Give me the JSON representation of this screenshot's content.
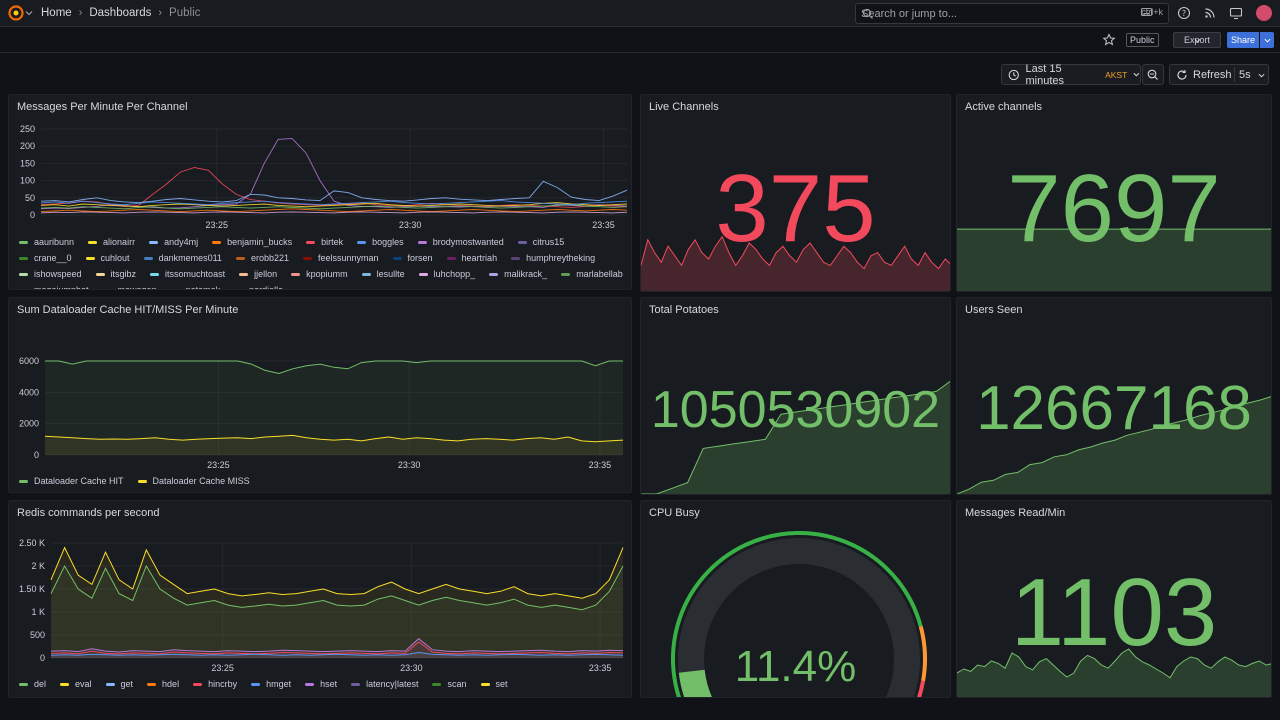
{
  "nav": {
    "breadcrumb_home": "Home",
    "breadcrumb_dashboards": "Dashboards",
    "breadcrumb_current": "Public",
    "search_placeholder": "Search or jump to...",
    "search_shortcut": "ctrl+k"
  },
  "toolbar": {
    "public_badge": "Public",
    "export_label": "Export",
    "share_label": "Share",
    "time_range": "Last 15 minutes",
    "timezone": "AKST",
    "refresh_label": "Refresh",
    "refresh_interval": "5s"
  },
  "panels": {
    "messages": {
      "title": "Messages Per Minute Per Channel",
      "yticks": [
        "250",
        "200",
        "150",
        "100",
        "50",
        "0"
      ],
      "xticks": [
        "23:25",
        "23:30",
        "23:35"
      ],
      "legend": [
        {
          "name": "aauribunn",
          "color": "#73bf69"
        },
        {
          "name": "alionairr",
          "color": "#fade2a"
        },
        {
          "name": "andy4mj",
          "color": "#8ab8ff"
        },
        {
          "name": "benjamin_bucks",
          "color": "#ff780a"
        },
        {
          "name": "birtek",
          "color": "#f2495c"
        },
        {
          "name": "boggles",
          "color": "#5794f2"
        },
        {
          "name": "brodymostwanted",
          "color": "#b877d9"
        },
        {
          "name": "citrus15",
          "color": "#705da0"
        },
        {
          "name": "crane__0",
          "color": "#37872d"
        },
        {
          "name": "cuhlout",
          "color": "#fade2a"
        },
        {
          "name": "dankmemes011",
          "color": "#447ebc"
        },
        {
          "name": "erobb221",
          "color": "#c15c17"
        },
        {
          "name": "feelssunnyman",
          "color": "#890f02"
        },
        {
          "name": "forsen",
          "color": "#0a437c"
        },
        {
          "name": "heartriah",
          "color": "#6d1f62"
        },
        {
          "name": "humphreytheking",
          "color": "#584477"
        },
        {
          "name": "ishowspeed",
          "color": "#b7dbab"
        },
        {
          "name": "itsgibz",
          "color": "#f4d598"
        },
        {
          "name": "itssomuchtoast",
          "color": "#70dbed"
        },
        {
          "name": "jjellon",
          "color": "#f9ba8f"
        },
        {
          "name": "kpopiumm",
          "color": "#f29191"
        },
        {
          "name": "lesullte",
          "color": "#82b5d8"
        },
        {
          "name": "luhchopp_",
          "color": "#e5a8e2"
        },
        {
          "name": "malikrack_",
          "color": "#aea2e0"
        },
        {
          "name": "marlabellab",
          "color": "#629e51"
        },
        {
          "name": "megajumpbot",
          "color": "#e5ac0e"
        },
        {
          "name": "mowogan",
          "color": "#64b0c8"
        },
        {
          "name": "natemek",
          "color": "#e0752d"
        },
        {
          "name": "nerdiella",
          "color": "#bf1b00"
        }
      ],
      "series": [
        {
          "color": "#b877d9",
          "values": [
            18,
            20,
            19,
            22,
            25,
            30,
            28,
            24,
            22,
            20,
            21,
            24,
            28,
            30,
            32,
            60,
            150,
            220,
            222,
            180,
            100,
            40,
            28,
            25,
            24,
            22,
            24,
            26,
            25,
            24,
            23,
            25,
            24,
            26,
            25,
            24,
            22,
            30,
            28,
            26,
            30,
            28,
            26
          ]
        },
        {
          "color": "#f2495c",
          "values": [
            30,
            32,
            35,
            40,
            38,
            30,
            25,
            28,
            60,
            90,
            125,
            138,
            130,
            90,
            60,
            45,
            40,
            35,
            32,
            30,
            28,
            30,
            32,
            35,
            30,
            28,
            26,
            30,
            34,
            30,
            28,
            26,
            25,
            28,
            30,
            28,
            26,
            24,
            22,
            25,
            28,
            26,
            24
          ]
        },
        {
          "color": "#8ab8ff",
          "values": [
            40,
            42,
            38,
            45,
            50,
            42,
            38,
            36,
            40,
            45,
            48,
            44,
            40,
            38,
            42,
            60,
            58,
            50,
            48,
            44,
            42,
            70,
            65,
            50,
            45,
            42,
            40,
            44,
            48,
            50,
            46,
            44,
            42,
            45,
            48,
            50,
            98,
            80,
            52,
            45,
            42,
            55,
            72
          ]
        },
        {
          "color": "#fade2a",
          "values": [
            28,
            30,
            26,
            32,
            30,
            28,
            26,
            24,
            28,
            30,
            32,
            30,
            28,
            26,
            28,
            30,
            32,
            28,
            26,
            24,
            26,
            28,
            30,
            32,
            34,
            30,
            28,
            26,
            28,
            30,
            32,
            30,
            28,
            26,
            28,
            30,
            34,
            36,
            32,
            30,
            28,
            30,
            32
          ]
        },
        {
          "color": "#73bf69",
          "values": [
            20,
            22,
            20,
            24,
            22,
            20,
            18,
            22,
            24,
            20,
            18,
            20,
            22,
            24,
            22,
            20,
            22,
            24,
            22,
            20,
            18,
            20,
            22,
            24,
            26,
            24,
            22,
            20,
            22,
            24,
            26,
            24,
            22,
            20,
            22,
            24,
            26,
            28,
            30,
            26,
            24,
            22,
            24
          ]
        },
        {
          "color": "#ff780a",
          "values": [
            10,
            12,
            14,
            12,
            10,
            12,
            14,
            16,
            14,
            12,
            10,
            12,
            14,
            12,
            10,
            12,
            14,
            16,
            18,
            16,
            14,
            12,
            10,
            12,
            14,
            16,
            14,
            12,
            10,
            12,
            14,
            16,
            14,
            12,
            10,
            12,
            14,
            16,
            14,
            12,
            14,
            16,
            14
          ]
        },
        {
          "color": "#5794f2",
          "values": [
            35,
            38,
            34,
            40,
            36,
            32,
            30,
            34,
            38,
            36,
            34,
            32,
            30,
            34,
            36,
            38,
            40,
            36,
            34,
            32,
            30,
            32,
            34,
            36,
            38,
            40,
            36,
            34,
            32,
            34,
            36,
            38,
            40,
            42,
            38,
            36,
            34,
            32,
            30,
            34,
            36,
            38,
            40
          ]
        },
        {
          "color": "#e5a8e2",
          "values": [
            6,
            8,
            7,
            9,
            8,
            7,
            6,
            8,
            9,
            8,
            7,
            6,
            8,
            9,
            8,
            7,
            6,
            8,
            9,
            8,
            7,
            6,
            8,
            9,
            8,
            7,
            6,
            8,
            9,
            8,
            7,
            6,
            8,
            9,
            8,
            7,
            6,
            8,
            9,
            8,
            7,
            6,
            8
          ]
        }
      ]
    },
    "cache": {
      "title": "Sum Dataloader Cache HIT/MISS Per Minute",
      "yticks": [
        "6000",
        "4000",
        "2000",
        "0"
      ],
      "xticks": [
        "23:25",
        "23:30",
        "23:35"
      ],
      "legend": [
        {
          "name": "Dataloader Cache HIT",
          "color": "#73bf69"
        },
        {
          "name": "Dataloader Cache MISS",
          "color": "#fade2a"
        }
      ],
      "series": [
        {
          "color": "#73bf69",
          "values": [
            6300,
            6100,
            5800,
            6000,
            6200,
            6800,
            6900,
            6700,
            6200,
            6100,
            6400,
            7000,
            6800,
            6300,
            6200,
            5800,
            5400,
            5200,
            5500,
            5700,
            5800,
            5600,
            5500,
            5900,
            6200,
            6600,
            6100,
            5900,
            6700,
            6600,
            6400,
            6500,
            6600,
            6300,
            6800,
            7300,
            7100,
            6900,
            6500,
            6000,
            5700,
            6100,
            6500
          ]
        },
        {
          "color": "#fade2a",
          "values": [
            1200,
            1150,
            1100,
            1050,
            1000,
            1020,
            1000,
            1050,
            1100,
            1000,
            950,
            1000,
            1050,
            1080,
            1100,
            1050,
            1150,
            1200,
            1250,
            1100,
            1000,
            950,
            1000,
            900,
            1050,
            1150,
            1000,
            1100,
            1050,
            950,
            900,
            1000,
            1050,
            1000,
            950,
            1050,
            1100,
            1000,
            1150,
            900,
            850,
            900,
            950
          ]
        }
      ]
    },
    "redis": {
      "title": "Redis commands per second",
      "yticks": [
        "2.50 K",
        "2 K",
        "1.50 K",
        "1 K",
        "500",
        "0"
      ],
      "xticks": [
        "23:25",
        "23:30",
        "23:35"
      ],
      "legend": [
        {
          "name": "del",
          "color": "#73bf69"
        },
        {
          "name": "eval",
          "color": "#fade2a"
        },
        {
          "name": "get",
          "color": "#8ab8ff"
        },
        {
          "name": "hdel",
          "color": "#ff780a"
        },
        {
          "name": "hincrby",
          "color": "#f2495c"
        },
        {
          "name": "hmget",
          "color": "#5794f2"
        },
        {
          "name": "hset",
          "color": "#b877d9"
        },
        {
          "name": "latency|latest",
          "color": "#705da0"
        },
        {
          "name": "scan",
          "color": "#37872d"
        },
        {
          "name": "set",
          "color": "#fade2a"
        }
      ],
      "series": [
        {
          "color": "#fade2a",
          "values": [
            1700,
            2400,
            1800,
            1600,
            2300,
            1700,
            1500,
            2350,
            1800,
            1600,
            1400,
            1450,
            1500,
            1400,
            1350,
            1380,
            1420,
            1380,
            1400,
            1450,
            1500,
            1400,
            1380,
            1400,
            1550,
            1650,
            1500,
            1400,
            1500,
            1600,
            1500,
            1450,
            1400,
            1450,
            1550,
            1400,
            1350,
            1400,
            1350,
            1300,
            1400,
            1700,
            2400
          ]
        },
        {
          "color": "#73bf69",
          "values": [
            1400,
            2000,
            1500,
            1300,
            1950,
            1400,
            1250,
            2000,
            1500,
            1300,
            1150,
            1200,
            1250,
            1150,
            1100,
            1130,
            1170,
            1130,
            1150,
            1200,
            1250,
            1150,
            1130,
            1150,
            1280,
            1350,
            1250,
            1150,
            1250,
            1320,
            1250,
            1200,
            1150,
            1200,
            1280,
            1150,
            1100,
            1150,
            1100,
            1050,
            1150,
            1450,
            2000
          ]
        },
        {
          "color": "#b877d9",
          "values": [
            150,
            160,
            140,
            200,
            150,
            130,
            160,
            150,
            140,
            180,
            160,
            150,
            140,
            160,
            150,
            140,
            150,
            170,
            160,
            150,
            140,
            150,
            160,
            150,
            140,
            160,
            150,
            420,
            180,
            150,
            140,
            160,
            150,
            140,
            150,
            160,
            170,
            150,
            140,
            160,
            150,
            170,
            160
          ]
        },
        {
          "color": "#f2495c",
          "values": [
            100,
            110,
            90,
            150,
            100,
            90,
            110,
            100,
            90,
            130,
            110,
            100,
            90,
            110,
            100,
            90,
            100,
            120,
            110,
            100,
            90,
            100,
            110,
            100,
            90,
            110,
            100,
            350,
            130,
            100,
            90,
            110,
            100,
            90,
            100,
            110,
            120,
            100,
            90,
            110,
            100,
            120,
            110
          ]
        },
        {
          "color": "#5794f2",
          "values": [
            60,
            70,
            60,
            80,
            70,
            60,
            70,
            60,
            70,
            80,
            70,
            60,
            70,
            60,
            70,
            80,
            70,
            60,
            70,
            60,
            70,
            80,
            70,
            60,
            70,
            60,
            70,
            120,
            80,
            70,
            60,
            70,
            60,
            70,
            80,
            70,
            60,
            70,
            60,
            70,
            80,
            70,
            60
          ]
        }
      ]
    },
    "live": {
      "title": "Live Channels",
      "value": "375",
      "color": "#f2495c",
      "spark": [
        300,
        340,
        320,
        305,
        330,
        315,
        300,
        325,
        340,
        320,
        310,
        330,
        345,
        320,
        300,
        315,
        335,
        325,
        310,
        300,
        320,
        330,
        315,
        305,
        325,
        335,
        320,
        305,
        300,
        315,
        330,
        320,
        305,
        295,
        315,
        320,
        305,
        300,
        315,
        330,
        310,
        300,
        320,
        305,
        295,
        310,
        300
      ]
    },
    "active": {
      "title": "Active channels",
      "value": "7697",
      "color": "#73bf69",
      "spark": [
        7697,
        7697,
        7697,
        7697,
        7697,
        7697,
        7697,
        7697,
        7697,
        7697
      ]
    },
    "potatoes": {
      "title": "Total Potatoes",
      "value": "1050530902",
      "color": "#73bf69",
      "spark": [
        0,
        0,
        5,
        10,
        40,
        42,
        44,
        46,
        48,
        70,
        72,
        74,
        76,
        78,
        80,
        82,
        84,
        86,
        88,
        90,
        100
      ]
    },
    "users": {
      "title": "Users Seen",
      "value": "12667168",
      "color": "#73bf69",
      "spark": [
        0,
        5,
        12,
        14,
        20,
        22,
        30,
        32,
        38,
        40,
        45,
        48,
        52,
        55,
        60,
        63,
        66,
        70,
        73,
        76,
        80,
        83,
        86,
        90,
        93,
        96,
        100
      ]
    },
    "cpu": {
      "title": "CPU Busy",
      "value": "11.4%",
      "percent": 11.4,
      "color": "#73bf69"
    },
    "msgread": {
      "title": "Messages Read/Min",
      "value": "1103",
      "color": "#73bf69",
      "spark": [
        30,
        35,
        32,
        40,
        38,
        45,
        42,
        36,
        55,
        50,
        38,
        34,
        44,
        48,
        40,
        32,
        25,
        30,
        45,
        52,
        48,
        40,
        36,
        45,
        55,
        60,
        50,
        44,
        40,
        35,
        30,
        24,
        38,
        45,
        50,
        48,
        40,
        36,
        44,
        50,
        46,
        40,
        38,
        42,
        45,
        40,
        42
      ]
    }
  }
}
